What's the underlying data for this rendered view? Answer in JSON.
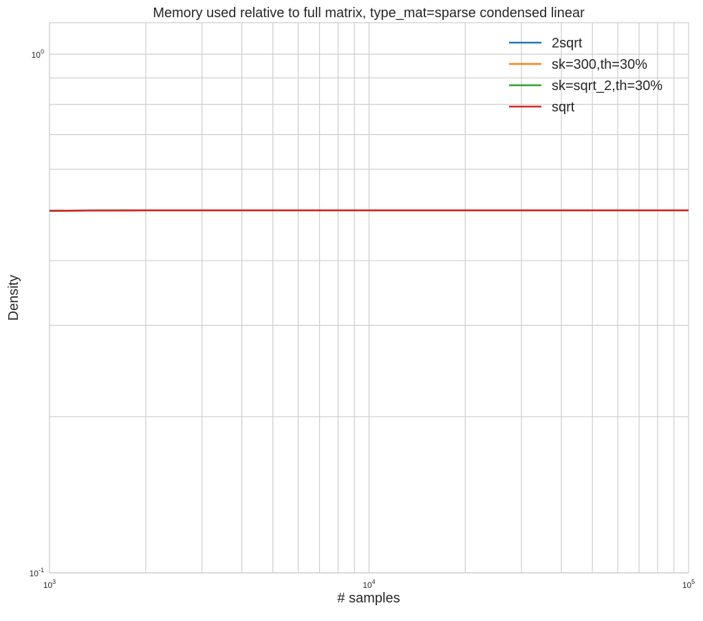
{
  "chart_data": {
    "type": "line",
    "title": "Memory used relative to full matrix, type_mat=sparse condensed linear",
    "xlabel": "# samples",
    "ylabel": "Density",
    "xscale": "log",
    "yscale": "log",
    "xlim": [
      1000,
      100000
    ],
    "ylim": [
      0.1,
      1.15
    ],
    "x_ticks": [
      {
        "value": 1000,
        "base": "10",
        "exp": "3"
      },
      {
        "value": 10000,
        "base": "10",
        "exp": "4"
      },
      {
        "value": 100000,
        "base": "10",
        "exp": "5"
      }
    ],
    "y_ticks": [
      {
        "value": 0.1,
        "base": "10",
        "exp": "-1"
      },
      {
        "value": 1,
        "base": "10",
        "exp": "0"
      }
    ],
    "grid": true,
    "legend_position": "top-right",
    "x": [
      1000,
      2000,
      5000,
      10000,
      20000,
      50000,
      100000
    ],
    "series": [
      {
        "name": "2sqrt",
        "color": "#1f77b4",
        "values": [
          0.499,
          0.5,
          0.5,
          0.5,
          0.5,
          0.5,
          0.5
        ]
      },
      {
        "name": "sk=300,th=30%",
        "color": "#ff7f0e",
        "values": [
          0.499,
          0.5,
          0.5,
          0.5,
          0.5,
          0.5,
          0.5
        ]
      },
      {
        "name": "sk=sqrt_2,th=30%",
        "color": "#2ca02c",
        "values": [
          0.499,
          0.5,
          0.5,
          0.5,
          0.5,
          0.5,
          0.5
        ]
      },
      {
        "name": "sqrt",
        "color": "#d62728",
        "values": [
          0.499,
          0.5,
          0.5,
          0.5,
          0.5,
          0.5,
          0.5
        ]
      }
    ]
  }
}
